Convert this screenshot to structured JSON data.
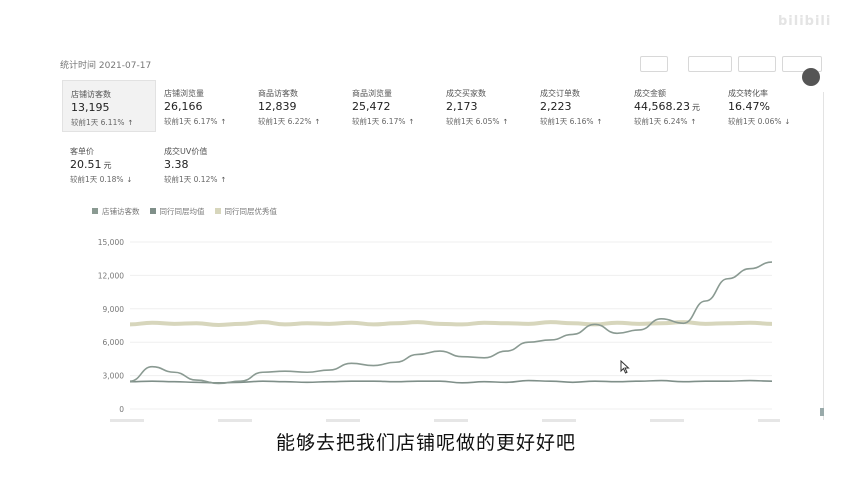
{
  "watermark": "bilibili",
  "top_row": {
    "title": "统计时间 2021-07-17"
  },
  "metrics": [
    {
      "label": "店铺访客数",
      "value": "13,195",
      "unit": "",
      "change_label": "较前1天",
      "change": "6.11%",
      "arrow": "↑",
      "selected": true
    },
    {
      "label": "店铺浏览量",
      "value": "26,166",
      "unit": "",
      "change_label": "较前1天",
      "change": "6.17%",
      "arrow": "↑",
      "selected": false
    },
    {
      "label": "商品访客数",
      "value": "12,839",
      "unit": "",
      "change_label": "较前1天",
      "change": "6.22%",
      "arrow": "↑",
      "selected": false
    },
    {
      "label": "商品浏览量",
      "value": "25,472",
      "unit": "",
      "change_label": "较前1天",
      "change": "6.17%",
      "arrow": "↑",
      "selected": false
    },
    {
      "label": "成交买家数",
      "value": "2,173",
      "unit": "",
      "change_label": "较前1天",
      "change": "6.05%",
      "arrow": "↑",
      "selected": false
    },
    {
      "label": "成交订单数",
      "value": "2,223",
      "unit": "",
      "change_label": "较前1天",
      "change": "6.16%",
      "arrow": "↑",
      "selected": false
    },
    {
      "label": "成交金额",
      "value": "44,568.23",
      "unit": "元",
      "change_label": "较前1天",
      "change": "6.24%",
      "arrow": "↑",
      "selected": false
    },
    {
      "label": "成交转化率",
      "value": "16.47%",
      "unit": "",
      "change_label": "较前1天",
      "change": "0.06%",
      "arrow": "↓",
      "selected": false
    },
    {
      "label": "客单价",
      "value": "20.51",
      "unit": "元",
      "change_label": "较前1天",
      "change": "0.18%",
      "arrow": "↓",
      "selected": false
    },
    {
      "label": "成交UV价值",
      "value": "3.38",
      "unit": "",
      "change_label": "较前1天",
      "change": "0.12%",
      "arrow": "↑",
      "selected": false
    }
  ],
  "chart_data": {
    "type": "line",
    "ylim": [
      0,
      15000
    ],
    "yticks": [
      "0",
      "3,000",
      "6,000",
      "9,000",
      "12,000",
      "15,000"
    ],
    "legend_position": "top-left",
    "grid": true,
    "x": [
      1,
      2,
      3,
      4,
      5,
      6,
      7,
      8,
      9,
      10,
      11,
      12,
      13,
      14,
      15,
      16,
      17,
      18,
      19,
      20,
      21,
      22,
      23,
      24,
      25,
      26,
      27,
      28,
      29,
      30
    ],
    "series": [
      {
        "name": "店铺访客数",
        "color": "#8a9a92",
        "values": [
          2500,
          3800,
          3300,
          2600,
          2300,
          2500,
          3300,
          3400,
          3300,
          3500,
          4100,
          3900,
          4200,
          4900,
          5200,
          4700,
          4600,
          5200,
          6000,
          6200,
          6700,
          7600,
          6800,
          7100,
          8100,
          7700,
          9700,
          11700,
          12600,
          13195
        ]
      },
      {
        "name": "同行同层均值",
        "color": "#7f8f89",
        "values": [
          2450,
          2500,
          2450,
          2400,
          2350,
          2400,
          2500,
          2450,
          2400,
          2450,
          2500,
          2500,
          2450,
          2500,
          2500,
          2350,
          2450,
          2400,
          2550,
          2500,
          2400,
          2500,
          2450,
          2500,
          2550,
          2450,
          2500,
          2500,
          2550,
          2500
        ]
      },
      {
        "name": "同行同层优秀值",
        "color": "#d7d6bc",
        "values": [
          7600,
          7750,
          7650,
          7700,
          7550,
          7650,
          7800,
          7600,
          7700,
          7650,
          7750,
          7600,
          7700,
          7800,
          7650,
          7600,
          7750,
          7700,
          7650,
          7800,
          7700,
          7600,
          7750,
          7650,
          7700,
          7800,
          7650,
          7700,
          7750,
          7650
        ]
      }
    ],
    "xtick_labels_visible": false
  },
  "subtitle": "能够去把我们店铺呢做的更好好吧"
}
